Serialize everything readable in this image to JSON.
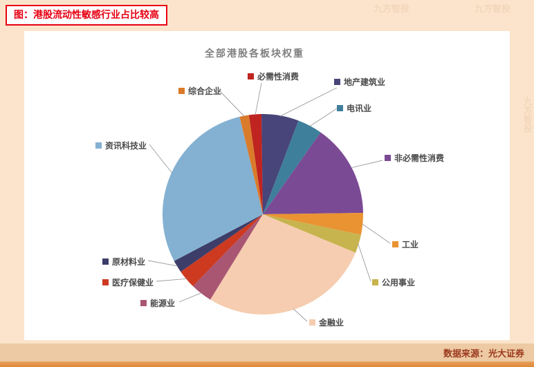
{
  "header": {
    "title": "图：港股流动性敏感行业占比较高"
  },
  "footer": {
    "source": "数据来源：光大证券"
  },
  "watermark": "九方智投",
  "chart_data": {
    "type": "pie",
    "title": "全部港股各板块权重",
    "unit": "%",
    "start_angle_deg": 352,
    "legend_position": "callout-labels-around-pie",
    "slices": [
      {
        "label": "必需性消费",
        "value": 2,
        "color": "#bf2420"
      },
      {
        "label": "地产建筑业",
        "value": 6,
        "color": "#474579"
      },
      {
        "label": "电讯业",
        "value": 4,
        "color": "#3e7f9b"
      },
      {
        "label": "非必需性消费",
        "value": 15,
        "color": "#7b4a94"
      },
      {
        "label": "工业",
        "value": 3.5,
        "color": "#e99332"
      },
      {
        "label": "公用事业",
        "value": 3,
        "color": "#c7b44e"
      },
      {
        "label": "金融业",
        "value": 27.5,
        "color": "#f6cdb0"
      },
      {
        "label": "能源业",
        "value": 3.5,
        "color": "#a95673"
      },
      {
        "label": "医疗保健业",
        "value": 3,
        "color": "#cd3a20"
      },
      {
        "label": "原材料业",
        "value": 2,
        "color": "#3d3d69"
      },
      {
        "label": "资讯科技业",
        "value": 29,
        "color": "#84b1d2"
      },
      {
        "label": "综合企业",
        "value": 1.5,
        "color": "#d97b2b"
      }
    ]
  }
}
